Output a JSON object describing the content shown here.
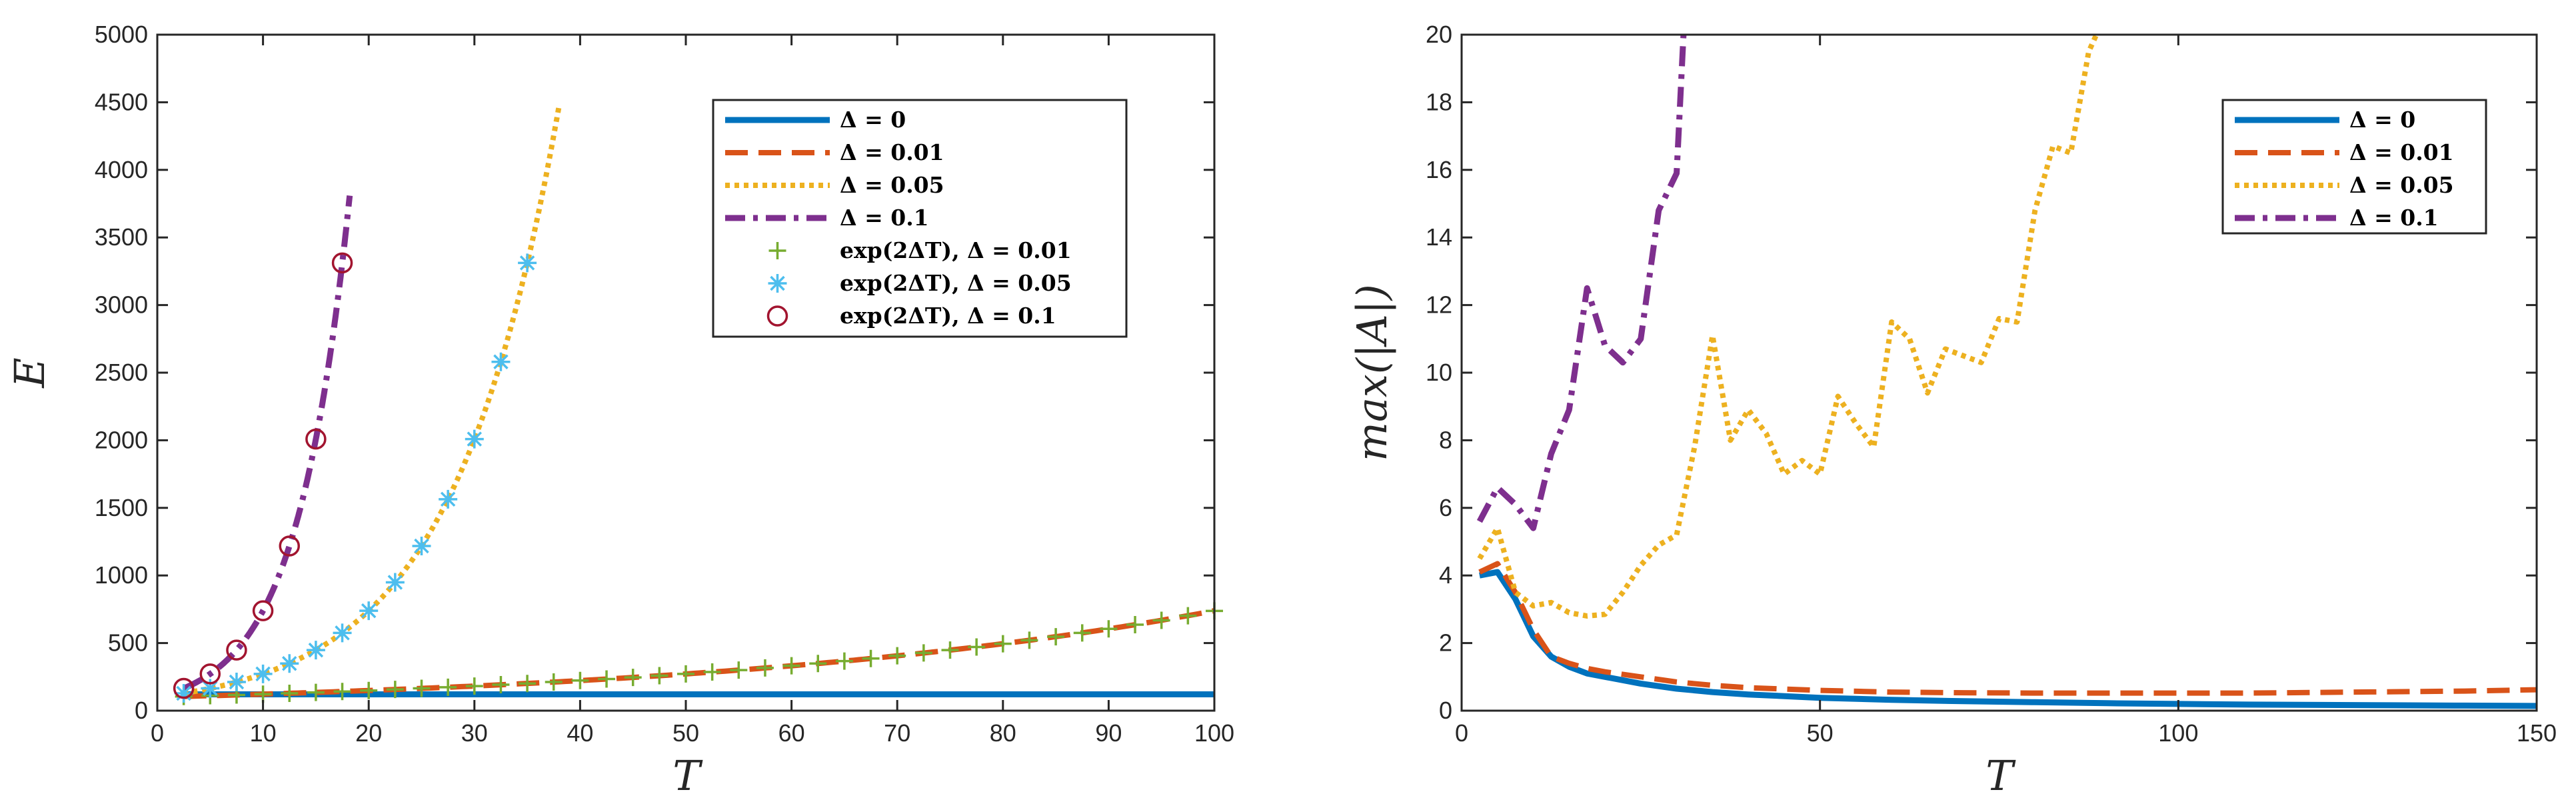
{
  "chart_data": [
    {
      "type": "line",
      "xlabel": "T",
      "ylabel": "E",
      "xlim": [
        0,
        100
      ],
      "ylim": [
        0,
        5000
      ],
      "xticks": [
        "0",
        "10",
        "20",
        "30",
        "40",
        "50",
        "60",
        "70",
        "80",
        "90",
        "100"
      ],
      "yticks": [
        "0",
        "500",
        "1000",
        "1500",
        "2000",
        "2500",
        "3000",
        "3500",
        "4000",
        "4500",
        "5000"
      ],
      "legend_position": "top-right",
      "series": [
        {
          "name": "Δ = 0",
          "style": "solid",
          "color": "#0072BD",
          "x": [
            2.5,
            100
          ],
          "y": [
            121,
            121
          ]
        },
        {
          "name": "Δ = 0.01",
          "style": "dashed",
          "color": "#D95319",
          "fn": "exp_0.02T_x100",
          "x": [
            2.5,
            100
          ]
        },
        {
          "name": "Δ = 0.05",
          "style": "dotted",
          "color": "#EDB120",
          "fn": "exp_0.1T_x100",
          "x": [
            2.5,
            38
          ]
        },
        {
          "name": "Δ = 0.1",
          "style": "dashdot",
          "color": "#7E2F8E",
          "fn": "exp_0.2T_x100",
          "x": [
            2.5,
            18.2
          ]
        }
      ],
      "markers": [
        {
          "name": "exp(2ΔT), Δ = 0.01",
          "symbol": "+",
          "color": "#77AC30",
          "x": [
            2.5,
            5,
            7.5,
            10,
            12.5,
            15,
            17.5,
            20,
            22.5,
            25,
            27.5,
            30,
            32.5,
            35,
            37.5,
            40,
            42.5,
            45,
            47.5,
            50,
            52.5,
            55,
            57.5,
            60,
            62.5,
            65,
            67.5,
            70,
            72.5,
            75,
            77.5,
            80,
            82.5,
            85,
            87.5,
            90,
            92.5,
            95,
            97.5,
            100
          ],
          "y": [
            105,
            111,
            116,
            122,
            128,
            135,
            142,
            149,
            157,
            165,
            173,
            182,
            192,
            201,
            212,
            223,
            234,
            246,
            259,
            272,
            286,
            300,
            316,
            332,
            349,
            367,
            386,
            406,
            427,
            448,
            471,
            495,
            521,
            547,
            575,
            605,
            636,
            668,
            702,
            738
          ]
        },
        {
          "name": "exp(2ΔT), Δ = 0.05",
          "symbol": "*",
          "color": "#4DBEEE",
          "x": [
            2.5,
            5,
            7.5,
            10,
            12.5,
            15,
            17.5,
            20,
            22.5,
            25,
            27.5,
            30,
            32.5,
            35
          ],
          "y": [
            128,
            165,
            212,
            272,
            349,
            448,
            575,
            739,
            949,
            1218,
            1564,
            2009,
            2580,
            3312
          ]
        },
        {
          "name": "exp(2ΔT), Δ = 0.1",
          "symbol": "o",
          "color": "#A2142F",
          "x": [
            2.5,
            5,
            7.5,
            10,
            12.5,
            15,
            17.5
          ],
          "y": [
            165,
            272,
            448,
            739,
            1218,
            2009,
            3312
          ]
        }
      ]
    },
    {
      "type": "line",
      "xlabel": "T",
      "ylabel": "max(|A|)",
      "xlim": [
        0,
        150
      ],
      "ylim": [
        0,
        20
      ],
      "xticks": [
        "0",
        "50",
        "100",
        "150"
      ],
      "yticks": [
        "0",
        "2",
        "4",
        "6",
        "8",
        "10",
        "12",
        "14",
        "16",
        "18",
        "20"
      ],
      "legend_position": "top-right",
      "series": [
        {
          "name": "Δ = 0",
          "style": "solid",
          "color": "#0072BD",
          "x": [
            2.5,
            5,
            7.5,
            10,
            12.5,
            15,
            17.5,
            20,
            25,
            30,
            35,
            40,
            50,
            60,
            70,
            80,
            90,
            100,
            110,
            120,
            130,
            140,
            150
          ],
          "y": [
            4.0,
            4.1,
            3.3,
            2.2,
            1.6,
            1.3,
            1.1,
            1.0,
            0.8,
            0.65,
            0.55,
            0.48,
            0.38,
            0.32,
            0.28,
            0.25,
            0.22,
            0.2,
            0.18,
            0.17,
            0.16,
            0.15,
            0.14
          ]
        },
        {
          "name": "Δ = 0.01",
          "style": "dashed",
          "color": "#D95319",
          "x": [
            2.5,
            5,
            7.5,
            10,
            12.5,
            15,
            17.5,
            20,
            25,
            30,
            35,
            40,
            50,
            60,
            70,
            80,
            90,
            100,
            110,
            120,
            130,
            140,
            150
          ],
          "y": [
            4.1,
            4.35,
            3.5,
            2.4,
            1.6,
            1.4,
            1.25,
            1.15,
            1.0,
            0.85,
            0.75,
            0.68,
            0.6,
            0.55,
            0.53,
            0.52,
            0.52,
            0.52,
            0.52,
            0.54,
            0.56,
            0.58,
            0.62
          ]
        },
        {
          "name": "Δ = 0.05",
          "style": "dotted",
          "color": "#EDB120",
          "x": [
            2.5,
            5,
            7.5,
            10,
            12.5,
            15,
            17.5,
            20,
            22.5,
            25,
            27.5,
            30,
            32.5,
            35,
            37.5,
            40,
            42.5,
            45,
            47.5,
            50,
            52.5,
            55,
            57.5,
            60,
            62.5,
            65,
            67.5,
            70,
            72.5,
            75,
            77.5,
            80,
            82.5,
            85,
            87.5,
            89
          ],
          "y": [
            4.5,
            5.4,
            3.5,
            3.1,
            3.2,
            2.9,
            2.8,
            2.85,
            3.5,
            4.3,
            4.9,
            5.2,
            7.8,
            11.1,
            8.0,
            8.9,
            8.2,
            7.0,
            7.4,
            7.0,
            9.3,
            8.5,
            7.8,
            11.5,
            11.0,
            9.4,
            10.7,
            10.5,
            10.3,
            11.6,
            11.5,
            14.8,
            16.7,
            16.5,
            19.5,
            20.2
          ]
        },
        {
          "name": "Δ = 0.1",
          "style": "dashdot",
          "color": "#7E2F8E",
          "x": [
            2.5,
            5,
            7.5,
            10,
            12.5,
            15,
            17.5,
            20,
            22.5,
            25,
            27.5,
            30,
            31
          ],
          "y": [
            5.6,
            6.6,
            6.1,
            5.4,
            7.6,
            8.9,
            12.5,
            10.8,
            10.3,
            11.0,
            14.8,
            15.9,
            20.2
          ]
        }
      ]
    }
  ],
  "legend_left": {
    "items": [
      "Δ = 0",
      "Δ = 0.01",
      "Δ = 0.05",
      "Δ = 0.1",
      "exp(2ΔT), Δ = 0.01",
      "exp(2ΔT), Δ = 0.05",
      "exp(2ΔT), Δ = 0.1"
    ]
  },
  "legend_right": {
    "items": [
      "Δ = 0",
      "Δ = 0.01",
      "Δ = 0.05",
      "Δ = 0.1"
    ]
  }
}
